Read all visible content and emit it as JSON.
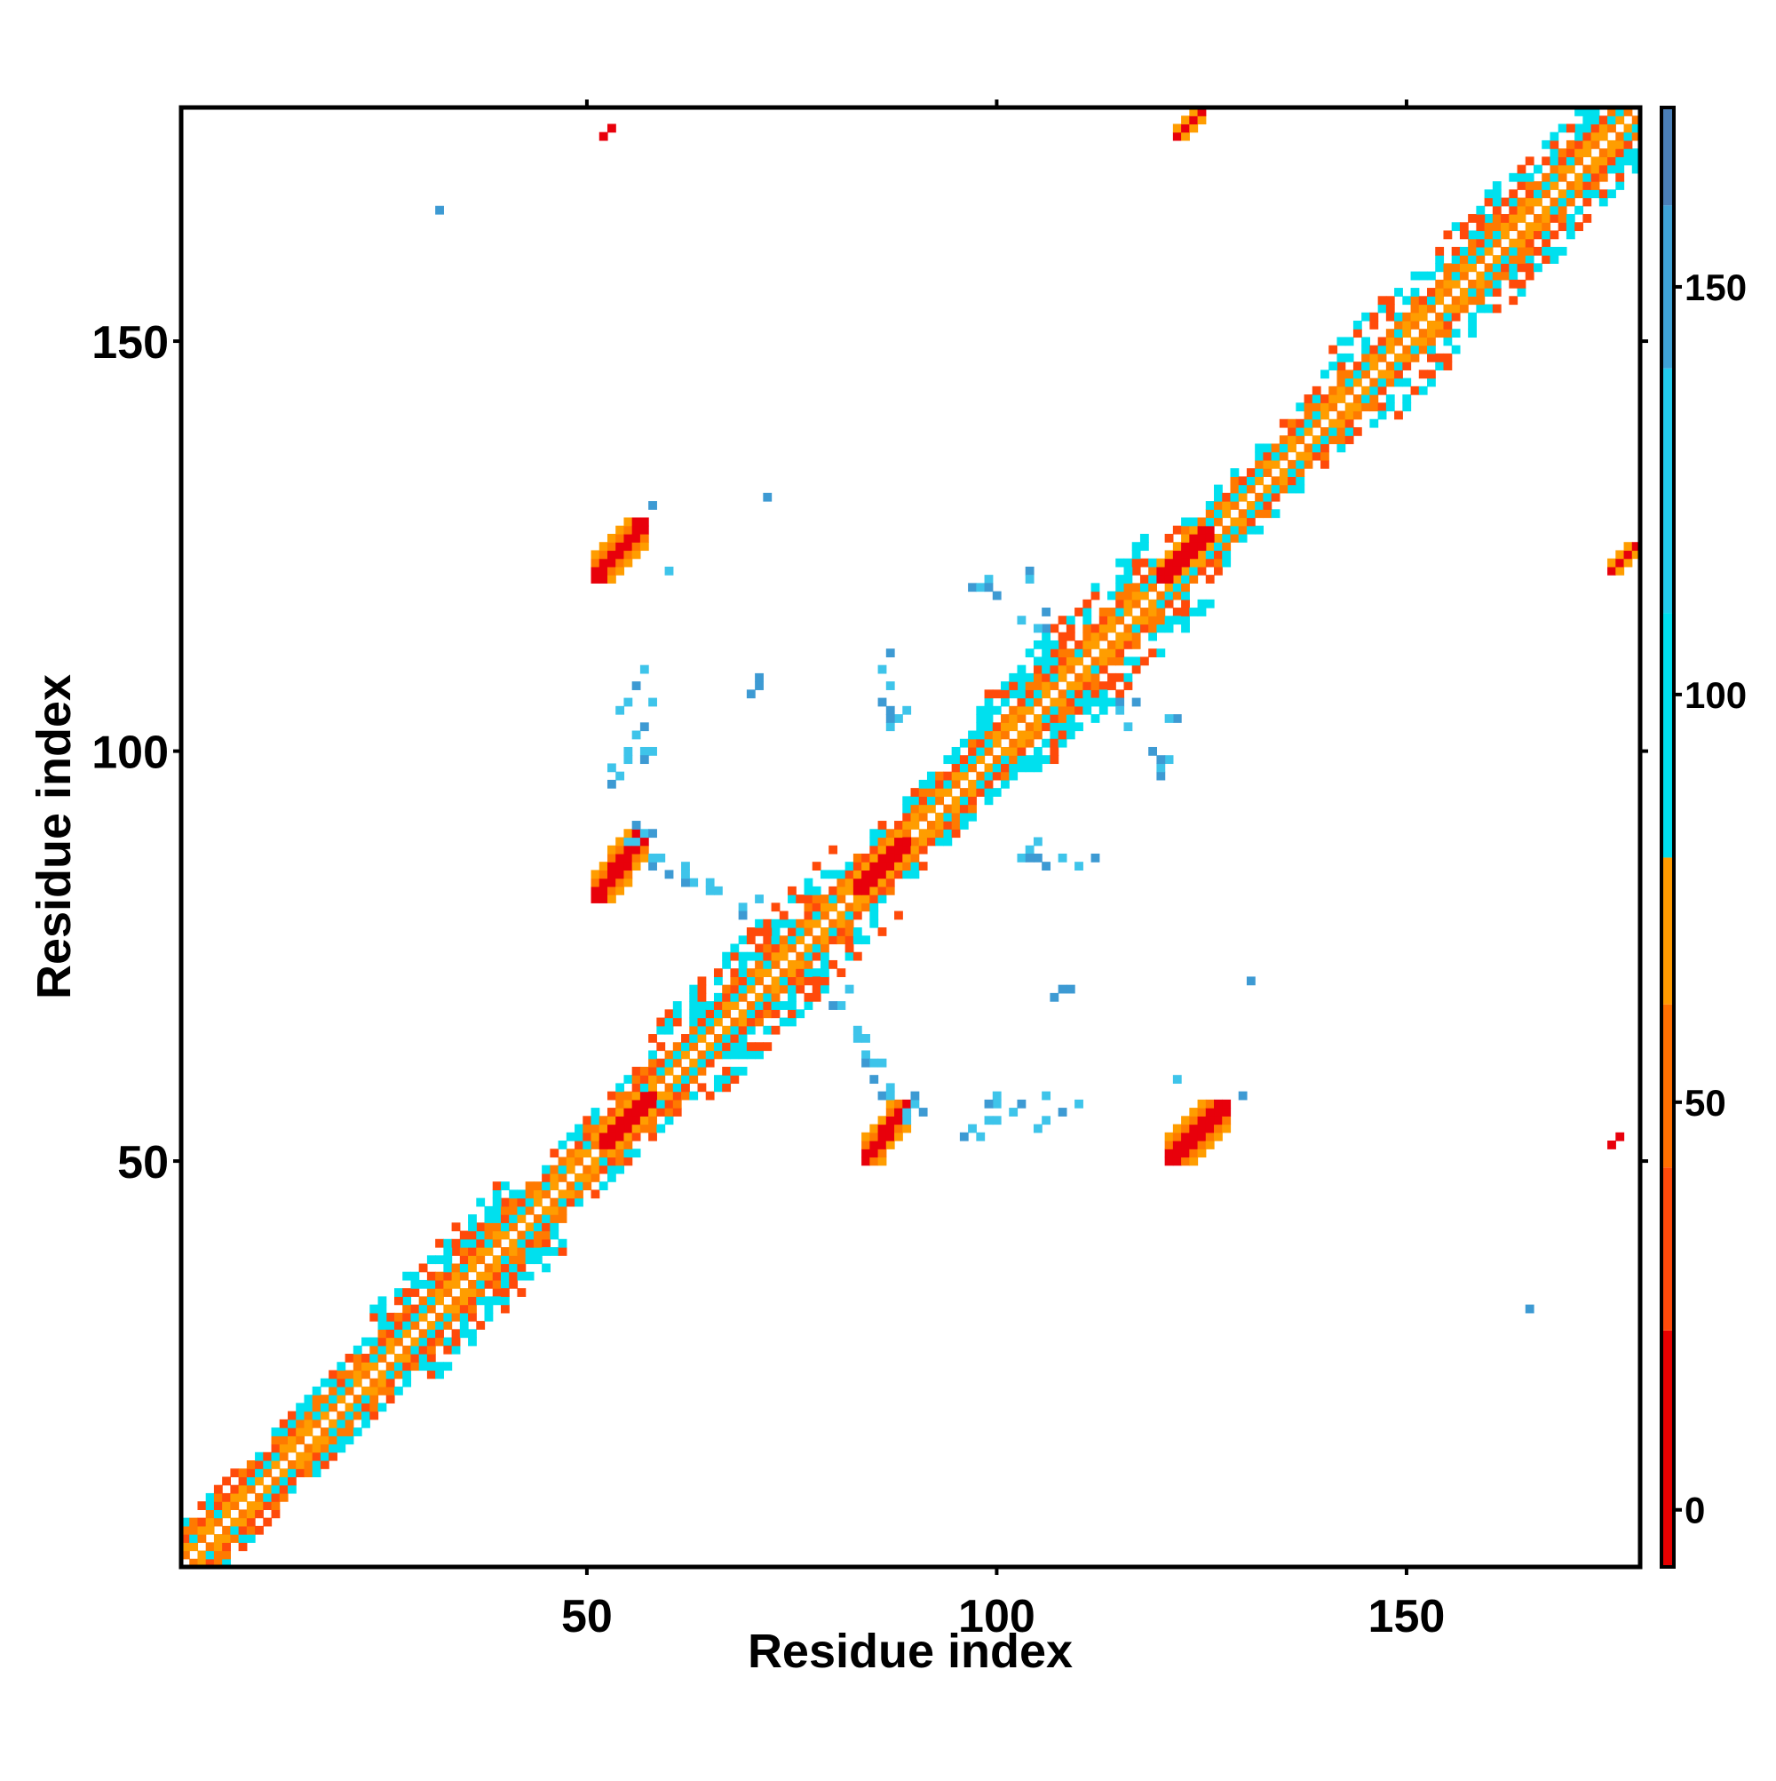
{
  "chart_data": {
    "type": "heatmap",
    "title": "",
    "xlabel": "Residue index",
    "ylabel": "Residue index",
    "xlim": [
      1,
      178
    ],
    "ylim": [
      1,
      178
    ],
    "x_ticks": [
      50,
      100,
      150
    ],
    "y_ticks": [
      50,
      100,
      150
    ],
    "colorbar": {
      "range": [
        -7,
        172
      ],
      "ticks": [
        0,
        50,
        100,
        150
      ],
      "stops": [
        {
          "value": -7,
          "color": "#e60000"
        },
        {
          "value": 22,
          "color": "#ff4a0a"
        },
        {
          "value": 42,
          "color": "#ff6f00"
        },
        {
          "value": 62,
          "color": "#ff9a00"
        },
        {
          "value": 80,
          "color": "#00ddee"
        },
        {
          "value": 110,
          "color": "#22ccee"
        },
        {
          "value": 140,
          "color": "#3fa2d6"
        },
        {
          "value": 160,
          "color": "#4b7fb8"
        },
        {
          "value": 172,
          "color": "#ffffff"
        }
      ]
    },
    "palette": {
      "red": "#e8000b",
      "red_orange": "#ff4a0a",
      "orange": "#ff7a00",
      "light_orange": "#ff9d00",
      "cyan": "#00e0ee",
      "light_blue": "#3ec4ea",
      "steel_blue": "#3d9ad3"
    },
    "diagonal_band": {
      "from": 1,
      "to": 178
    },
    "regions": [
      {
        "x": [
          84,
          89
        ],
        "y": [
          50,
          57
        ],
        "color": "red"
      },
      {
        "x": [
          121,
          128
        ],
        "y": [
          50,
          57
        ],
        "color": "red"
      },
      {
        "x": [
          51,
          57
        ],
        "y": [
          82,
          90
        ],
        "color": "red"
      },
      {
        "x": [
          51,
          57
        ],
        "y": [
          121,
          128
        ],
        "color": "red"
      },
      {
        "x": [
          52,
          58
        ],
        "y": [
          52,
          58
        ],
        "color": "red"
      },
      {
        "x": [
          83,
          89
        ],
        "y": [
          83,
          89
        ],
        "color": "red"
      },
      {
        "x": [
          120,
          126
        ],
        "y": [
          121,
          127
        ],
        "color": "red"
      },
      {
        "x": [
          122,
          125
        ],
        "y": [
          175,
          178
        ],
        "color": "red"
      },
      {
        "x": [
          175,
          178
        ],
        "y": [
          122,
          125
        ],
        "color": "red"
      }
    ],
    "scattered_points": [
      {
        "x": 32,
        "y": 166,
        "color": "steel_blue"
      },
      {
        "x": 165,
        "y": 32,
        "color": "steel_blue"
      },
      {
        "x": 52,
        "y": 175,
        "color": "red"
      },
      {
        "x": 53,
        "y": 176,
        "color": "red"
      },
      {
        "x": 175,
        "y": 52,
        "color": "red"
      },
      {
        "x": 176,
        "y": 53,
        "color": "red"
      }
    ]
  }
}
